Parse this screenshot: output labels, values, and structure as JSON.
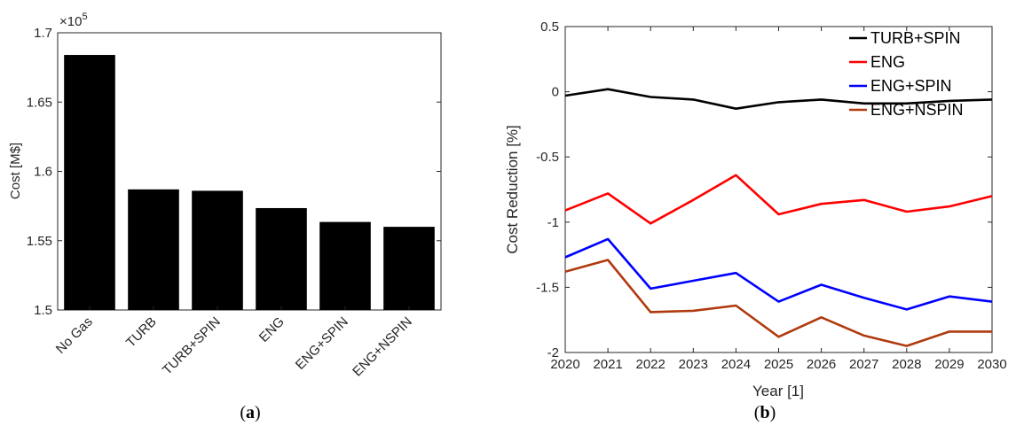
{
  "chart_data": [
    {
      "type": "bar",
      "categories": [
        "No Gas",
        "TURB",
        "TURB+SPIN",
        "ENG",
        "ENG+SPIN",
        "ENG+NSPIN"
      ],
      "values": [
        1.684,
        1.587,
        1.586,
        1.5735,
        1.5635,
        1.56
      ],
      "multiplier_label": "×10",
      "multiplier_exponent": "5",
      "ylabel": "Cost [M$]",
      "xlabel": "",
      "ylim": [
        1.5,
        1.7
      ],
      "yticks": [
        "1.5",
        "1.55",
        "1.6",
        "1.65",
        "1.7"
      ],
      "ytick_values": [
        1.5,
        1.55,
        1.6,
        1.65,
        1.7
      ],
      "bar_color": "#000000",
      "caption": "(a)",
      "grid": false
    },
    {
      "type": "line",
      "x": [
        2020,
        2021,
        2022,
        2023,
        2024,
        2025,
        2026,
        2027,
        2028,
        2029,
        2030
      ],
      "series": [
        {
          "name": "TURB+SPIN",
          "color": "#000000",
          "values": [
            -0.03,
            0.02,
            -0.04,
            -0.06,
            -0.13,
            -0.08,
            -0.06,
            -0.09,
            -0.09,
            -0.07,
            -0.06
          ]
        },
        {
          "name": "ENG",
          "color": "#ff0000",
          "values": [
            -0.91,
            -0.78,
            -1.01,
            -0.83,
            -0.64,
            -0.94,
            -0.86,
            -0.83,
            -0.92,
            -0.88,
            -0.8
          ]
        },
        {
          "name": "ENG+SPIN",
          "color": "#0000ff",
          "values": [
            -1.27,
            -1.13,
            -1.51,
            -1.45,
            -1.39,
            -1.61,
            -1.48,
            -1.58,
            -1.67,
            -1.57,
            -1.61
          ]
        },
        {
          "name": "ENG+NSPIN",
          "color": "#b03a0e",
          "values": [
            -1.38,
            -1.29,
            -1.69,
            -1.68,
            -1.64,
            -1.88,
            -1.73,
            -1.87,
            -1.95,
            -1.84,
            -1.84
          ]
        }
      ],
      "xlabel": "Year [1]",
      "ylabel": "Cost Reduction [%]",
      "xlim": [
        2020,
        2030
      ],
      "ylim": [
        -2,
        0.5
      ],
      "xticks": [
        "2020",
        "2021",
        "2022",
        "2023",
        "2024",
        "2025",
        "2026",
        "2027",
        "2028",
        "2029",
        "2030"
      ],
      "yticks": [
        "-2",
        "-1.5",
        "-1",
        "-0.5",
        "0",
        "0.5"
      ],
      "ytick_values": [
        -2,
        -1.5,
        -1,
        -0.5,
        0,
        0.5
      ],
      "legend_position": "top-right",
      "caption": "(b)",
      "grid": false
    }
  ]
}
